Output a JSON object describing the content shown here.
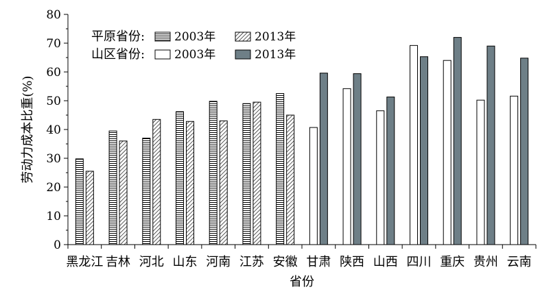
{
  "chart_data": {
    "type": "bar",
    "xlabel": "省份",
    "ylabel": "劳动力成本比重(%)",
    "ylim": [
      0,
      80
    ],
    "yticks": [
      0,
      10,
      20,
      30,
      40,
      50,
      60,
      70,
      80
    ],
    "grid": false,
    "legend_position": "top-left",
    "categories": [
      "黑龙江",
      "吉林",
      "河北",
      "山东",
      "河南",
      "江苏",
      "安徽",
      "甘肃",
      "陕西",
      "山西",
      "四川",
      "重庆",
      "贵州",
      "云南"
    ],
    "legend": {
      "groups": [
        {
          "label": "平原省份:",
          "entries": [
            {
              "label": "2003年",
              "series": "plain_2003"
            },
            {
              "label": "2013年",
              "series": "plain_2013"
            }
          ]
        },
        {
          "label": "山区省份:",
          "entries": [
            {
              "label": "2003年",
              "series": "mountain_2003"
            },
            {
              "label": "2013年",
              "series": "mountain_2013"
            }
          ]
        }
      ]
    },
    "series": [
      {
        "key": "plain_2003",
        "style": "horizontal-hatch",
        "values": [
          29.8,
          39.5,
          37.0,
          46.2,
          49.8,
          49.0,
          52.5,
          null,
          null,
          null,
          null,
          null,
          null,
          null
        ]
      },
      {
        "key": "plain_2013",
        "style": "diagonal-hatch",
        "values": [
          25.5,
          36.0,
          43.5,
          42.8,
          43.0,
          49.5,
          45.0,
          null,
          null,
          null,
          null,
          null,
          null,
          null
        ]
      },
      {
        "key": "mountain_2003",
        "style": "white",
        "values": [
          null,
          null,
          null,
          null,
          null,
          null,
          null,
          40.7,
          54.2,
          46.5,
          69.2,
          64.0,
          50.2,
          51.6
        ]
      },
      {
        "key": "mountain_2013",
        "style": "dark-gray",
        "color": "#6e7f87",
        "values": [
          null,
          null,
          null,
          null,
          null,
          null,
          null,
          59.6,
          59.4,
          51.3,
          65.3,
          72.0,
          69.0,
          64.8
        ]
      }
    ]
  }
}
